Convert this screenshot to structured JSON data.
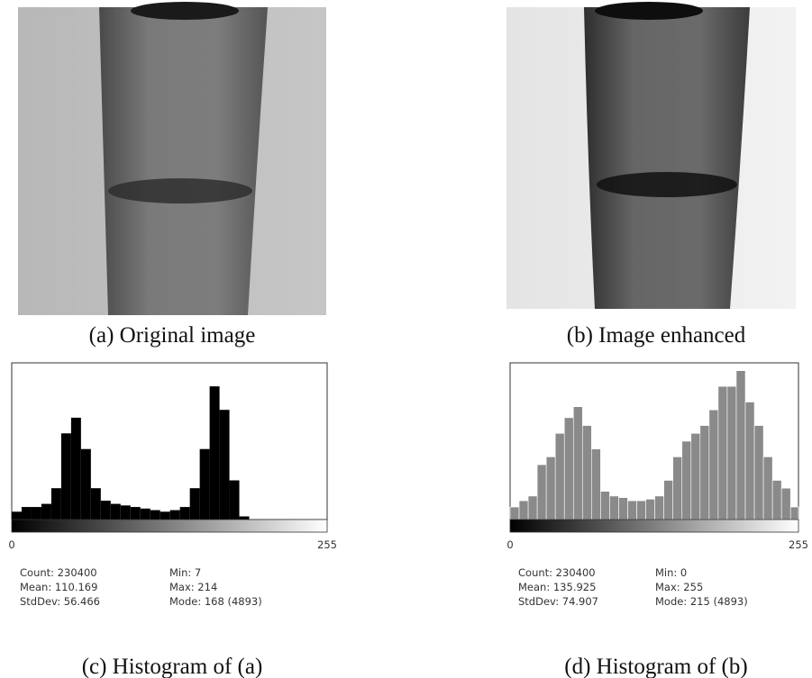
{
  "images": [
    {
      "caption": "(a) Original image"
    },
    {
      "caption": "(b) Image enhanced"
    }
  ],
  "chart_data": [
    {
      "type": "histogram",
      "caption": "(c) Histogram of (a)",
      "stats": [
        [
          "Count: 230400",
          "Min: 7"
        ],
        [
          "Mean: 110.169",
          "Max: 214"
        ],
        [
          "StdDev: 56.466",
          "Mode: 168 (4893)"
        ]
      ],
      "bins": [
        0,
        8,
        16,
        24,
        32,
        40,
        48,
        56,
        64,
        72,
        80,
        88,
        96,
        104,
        112,
        120,
        128,
        136,
        144,
        152,
        160,
        168,
        176,
        184,
        192,
        200,
        208,
        216,
        224,
        232,
        240,
        248,
        255
      ],
      "values": [
        5,
        8,
        8,
        10,
        20,
        55,
        65,
        45,
        20,
        12,
        10,
        9,
        8,
        7,
        6,
        5,
        6,
        8,
        20,
        45,
        85,
        70,
        25,
        2,
        0,
        0,
        0,
        0,
        0,
        0,
        0,
        0
      ],
      "color": "#000000",
      "xlim": [
        0,
        255
      ],
      "xticks": [
        0,
        255
      ],
      "ylim": [
        0,
        100
      ]
    },
    {
      "type": "histogram",
      "caption": "(d) Histogram of (b)",
      "stats": [
        [
          "Count: 230400",
          "Min: 0"
        ],
        [
          "Mean: 135.925",
          "Max: 255"
        ],
        [
          "StdDev: 74.907",
          "Mode: 215 (4893)"
        ]
      ],
      "bins": [
        0,
        8,
        16,
        24,
        32,
        40,
        48,
        56,
        64,
        72,
        80,
        88,
        96,
        104,
        112,
        120,
        128,
        136,
        144,
        152,
        160,
        168,
        176,
        184,
        192,
        200,
        208,
        216,
        224,
        232,
        240,
        248,
        255
      ],
      "values": [
        8,
        12,
        15,
        35,
        40,
        55,
        65,
        72,
        60,
        45,
        18,
        15,
        14,
        12,
        12,
        13,
        15,
        25,
        40,
        50,
        55,
        60,
        70,
        85,
        85,
        95,
        75,
        60,
        40,
        25,
        20,
        8
      ],
      "color": "#8a8a8a",
      "xlim": [
        0,
        255
      ],
      "xticks": [
        0,
        255
      ],
      "ylim": [
        0,
        100
      ]
    }
  ]
}
